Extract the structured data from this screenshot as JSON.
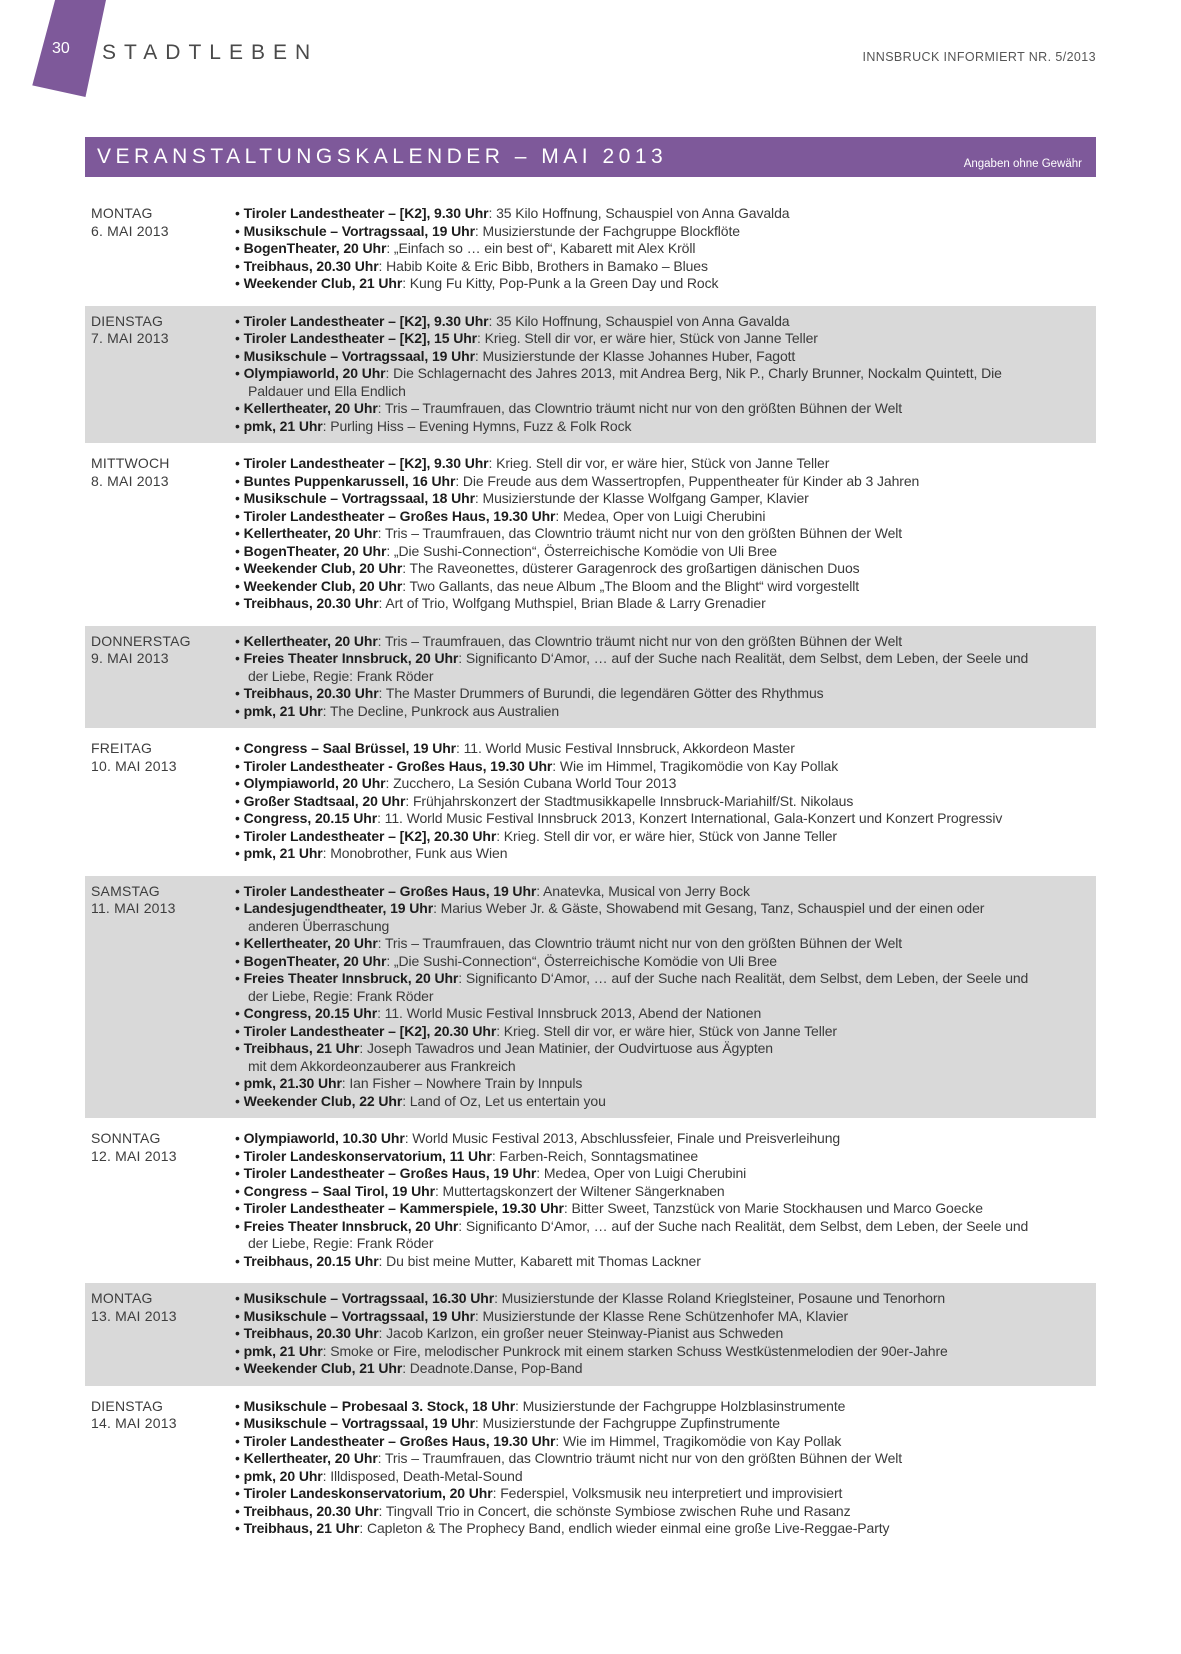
{
  "header": {
    "page_number": "30",
    "section_title": "STADTLEBEN",
    "issue": "INNSBRUCK INFORMIERT NR. 5/2013"
  },
  "icons": {
    "bullet": "•"
  },
  "calendar": {
    "title": "VERANSTALTUNGSKALENDER – MAI 2013",
    "disclaimer": "Angaben ohne Gewähr",
    "separator": ": ",
    "colors": {
      "accent": "#7e599a",
      "row_shade": "#d9d9d9"
    },
    "days": [
      {
        "day": "MONTAG",
        "date": "6. MAI 2013",
        "shaded": false,
        "events": [
          {
            "lead": "Tiroler Landestheater – [K2], 9.30 Uhr",
            "text": "35 Kilo Hoffnung, Schauspiel von Anna Gavalda"
          },
          {
            "lead": "Musikschule – Vortragssaal, 19 Uhr",
            "text": "Musizierstunde der Fachgruppe Blockflöte"
          },
          {
            "lead": "BogenTheater, 20 Uhr",
            "text": "„Einfach so … ein best of“, Kabarett mit Alex Kröll"
          },
          {
            "lead": "Treibhaus, 20.30 Uhr",
            "text": "Habib Koite & Eric Bibb, Brothers in Bamako – Blues"
          },
          {
            "lead": "Weekender Club, 21 Uhr",
            "text": "Kung Fu Kitty, Pop-Punk a la Green Day und Rock"
          }
        ]
      },
      {
        "day": "DIENSTAG",
        "date": "7. MAI 2013",
        "shaded": true,
        "events": [
          {
            "lead": "Tiroler Landestheater – [K2], 9.30 Uhr",
            "text": "35 Kilo Hoffnung, Schauspiel von Anna Gavalda"
          },
          {
            "lead": "Tiroler Landestheater – [K2], 15 Uhr",
            "text": "Krieg. Stell dir vor, er wäre hier, Stück von Janne Teller"
          },
          {
            "lead": "Musikschule – Vortragssaal, 19 Uhr",
            "text": "Musizierstunde der Klasse Johannes Huber, Fagott"
          },
          {
            "lead": "Olympiaworld, 20 Uhr",
            "text": "Die Schlagernacht des Jahres 2013, mit Andrea Berg, Nik P., Charly Brunner, Nockalm Quintett, Die Paldauer und Ella Endlich"
          },
          {
            "lead": "Kellertheater, 20 Uhr",
            "text": "Tris – Traumfrauen, das Clowntrio träumt nicht nur von den größten Bühnen der Welt"
          },
          {
            "lead": "pmk, 21 Uhr",
            "text": "Purling Hiss – Evening Hymns, Fuzz & Folk Rock"
          }
        ]
      },
      {
        "day": "MITTWOCH",
        "date": "8. MAI 2013",
        "shaded": false,
        "events": [
          {
            "lead": "Tiroler Landestheater – [K2], 9.30 Uhr",
            "text": "Krieg. Stell dir vor, er wäre hier, Stück von Janne Teller"
          },
          {
            "lead": "Buntes Puppenkarussell, 16 Uhr",
            "text": "Die Freude aus dem Wassertropfen, Puppentheater für Kinder ab 3 Jahren"
          },
          {
            "lead": "Musikschule – Vortragssaal, 18 Uhr",
            "text": "Musizierstunde der Klasse Wolfgang Gamper, Klavier"
          },
          {
            "lead": "Tiroler Landestheater – Großes Haus, 19.30 Uhr",
            "text": "Medea, Oper von Luigi Cherubini"
          },
          {
            "lead": "Kellertheater, 20 Uhr",
            "text": "Tris – Traumfrauen, das Clowntrio träumt nicht nur von den größten Bühnen der Welt"
          },
          {
            "lead": "BogenTheater, 20 Uhr",
            "text": "„Die Sushi-Connection“, Österreichische Komödie von Uli Bree"
          },
          {
            "lead": "Weekender Club, 20 Uhr",
            "text": "The Raveonettes, düsterer Garagenrock des großartigen dänischen Duos"
          },
          {
            "lead": "Weekender Club, 20 Uhr",
            "text": "Two Gallants, das neue Album „The Bloom and the Blight“ wird vorgestellt"
          },
          {
            "lead": "Treibhaus, 20.30 Uhr",
            "text": "Art of Trio, Wolfgang Muthspiel, Brian Blade & Larry Grenadier"
          }
        ]
      },
      {
        "day": "DONNERSTAG",
        "date": "9. MAI 2013",
        "shaded": true,
        "events": [
          {
            "lead": "Kellertheater, 20 Uhr",
            "text": "Tris – Traumfrauen, das Clowntrio träumt nicht nur von den größten Bühnen der Welt"
          },
          {
            "lead": "Freies Theater Innsbruck, 20 Uhr",
            "text": "Significanto D‘Amor, … auf der Suche nach Realität, dem Selbst, dem Leben, der Seele und der Liebe, Regie: Frank Röder"
          },
          {
            "lead": "Treibhaus, 20.30 Uhr",
            "text": "The Master Drummers of Burundi, die legendären Götter des Rhythmus"
          },
          {
            "lead": "pmk, 21 Uhr",
            "text": "The Decline, Punkrock aus Australien"
          }
        ]
      },
      {
        "day": "FREITAG",
        "date": "10. MAI 2013",
        "shaded": false,
        "events": [
          {
            "lead": "Congress – Saal Brüssel, 19 Uhr",
            "text": "11. World Music Festival Innsbruck, Akkordeon Master"
          },
          {
            "lead": "Tiroler Landestheater - Großes Haus, 19.30 Uhr",
            "text": "Wie im Himmel, Tragikomödie von Kay Pollak"
          },
          {
            "lead": "Olympiaworld, 20 Uhr",
            "text": "Zucchero, La Sesión Cubana World Tour 2013"
          },
          {
            "lead": "Großer Stadtsaal, 20 Uhr",
            "text": "Frühjahrskonzert der Stadtmusikkapelle Innsbruck-Mariahilf/St. Nikolaus"
          },
          {
            "lead": "Congress, 20.15 Uhr",
            "text": "11. World Music Festival Innsbruck 2013, Konzert International, Gala-Konzert und Konzert Progressiv"
          },
          {
            "lead": "Tiroler Landestheater – [K2], 20.30 Uhr",
            "text": "Krieg. Stell dir vor, er wäre hier, Stück von Janne Teller"
          },
          {
            "lead": "pmk, 21 Uhr",
            "text": "Monobrother, Funk aus Wien"
          }
        ]
      },
      {
        "day": "SAMSTAG",
        "date": "11. MAI 2013",
        "shaded": true,
        "events": [
          {
            "lead": "Tiroler Landestheater – Großes Haus, 19 Uhr",
            "text": "Anatevka, Musical von Jerry Bock"
          },
          {
            "lead": "Landesjugendtheater, 19 Uhr",
            "text": "Marius Weber Jr. & Gäste, Showabend mit Gesang, Tanz, Schauspiel und der einen oder anderen Überraschung"
          },
          {
            "lead": "Kellertheater, 20 Uhr",
            "text": "Tris – Traumfrauen, das Clowntrio träumt nicht nur von den größten Bühnen der Welt"
          },
          {
            "lead": "BogenTheater, 20 Uhr",
            "text": "„Die Sushi-Connection“, Österreichische Komödie von Uli Bree"
          },
          {
            "lead": "Freies Theater Innsbruck, 20 Uhr",
            "text": "Significanto D‘Amor, … auf der Suche nach Realität, dem Selbst, dem Leben, der Seele und der Liebe, Regie: Frank Röder"
          },
          {
            "lead": "Congress, 20.15 Uhr",
            "text": "11. World Music Festival Innsbruck 2013, Abend der Nationen"
          },
          {
            "lead": "Tiroler Landestheater – [K2], 20.30 Uhr",
            "text": "Krieg. Stell dir vor, er wäre hier, Stück von Janne Teller"
          },
          {
            "lead": "Treibhaus, 21 Uhr",
            "text": "Joseph Tawadros und Jean Matinier, der Oudvirtuose aus Ägypten\nmit dem Akkordeonzauberer aus Frankreich"
          },
          {
            "lead": "pmk, 21.30 Uhr",
            "text": "Ian Fisher – Nowhere Train by Innpuls"
          },
          {
            "lead": "Weekender Club, 22 Uhr",
            "text": "Land of Oz, Let us entertain you"
          }
        ]
      },
      {
        "day": "SONNTAG",
        "date": "12. MAI 2013",
        "shaded": false,
        "events": [
          {
            "lead": "Olympiaworld, 10.30 Uhr",
            "text": "World Music Festival 2013, Abschlussfeier, Finale und Preisverleihung"
          },
          {
            "lead": "Tiroler Landeskonservatorium, 11 Uhr",
            "text": "Farben-Reich, Sonntagsmatinee"
          },
          {
            "lead": "Tiroler Landestheater – Großes Haus, 19 Uhr",
            "text": "Medea, Oper von Luigi Cherubini"
          },
          {
            "lead": "Congress – Saal Tirol, 19 Uhr",
            "text": "Muttertagskonzert der Wiltener Sängerknaben"
          },
          {
            "lead": "Tiroler Landestheater – Kammerspiele, 19.30 Uhr",
            "text": "Bitter Sweet, Tanzstück von Marie Stockhausen und Marco Goecke"
          },
          {
            "lead": "Freies Theater Innsbruck, 20 Uhr",
            "text": "Significanto D‘Amor, … auf der Suche nach Realität, dem Selbst, dem Leben, der Seele und der Liebe, Regie: Frank Röder"
          },
          {
            "lead": "Treibhaus, 20.15 Uhr",
            "text": "Du bist meine Mutter, Kabarett mit Thomas Lackner"
          }
        ]
      },
      {
        "day": "MONTAG",
        "date": "13. MAI 2013",
        "shaded": true,
        "events": [
          {
            "lead": "Musikschule – Vortragssaal, 16.30 Uhr",
            "text": "Musizierstunde der Klasse Roland Krieglsteiner, Posaune und Tenorhorn"
          },
          {
            "lead": "Musikschule – Vortragssaal, 19 Uhr",
            "text": "Musizierstunde der Klasse Rene Schützenhofer MA, Klavier"
          },
          {
            "lead": "Treibhaus, 20.30 Uhr",
            "text": "Jacob Karlzon, ein großer neuer Steinway-Pianist aus Schweden"
          },
          {
            "lead": "pmk, 21 Uhr",
            "text": "Smoke or Fire, melodischer Punkrock mit einem starken Schuss Westküstenmelodien der 90er-Jahre"
          },
          {
            "lead": "Weekender Club, 21 Uhr",
            "text": "Deadnote.Danse, Pop-Band"
          }
        ]
      },
      {
        "day": "DIENSTAG",
        "date": "14. MAI 2013",
        "shaded": false,
        "events": [
          {
            "lead": "Musikschule – Probesaal 3. Stock, 18 Uhr",
            "text": "Musizierstunde der Fachgruppe Holzblasinstrumente"
          },
          {
            "lead": "Musikschule – Vortragssaal, 19 Uhr",
            "text": "Musizierstunde der Fachgruppe Zupfinstrumente"
          },
          {
            "lead": "Tiroler Landestheater – Großes Haus, 19.30 Uhr",
            "text": "Wie im Himmel, Tragikomödie von Kay Pollak"
          },
          {
            "lead": "Kellertheater, 20 Uhr",
            "text": "Tris – Traumfrauen, das Clowntrio träumt nicht nur von den größten Bühnen der Welt"
          },
          {
            "lead": "pmk, 20 Uhr",
            "text": "Illdisposed, Death-Metal-Sound"
          },
          {
            "lead": "Tiroler Landeskonservatorium, 20 Uhr",
            "text": "Federspiel, Volksmusik neu interpretiert und improvisiert"
          },
          {
            "lead": "Treibhaus, 20.30 Uhr",
            "text": "Tingvall Trio in Concert, die schönste Symbiose zwischen Ruhe und Rasanz"
          },
          {
            "lead": "Treibhaus, 21 Uhr",
            "text": "Capleton & The Prophecy Band, endlich wieder einmal eine große Live-Reggae-Party"
          }
        ]
      }
    ]
  }
}
